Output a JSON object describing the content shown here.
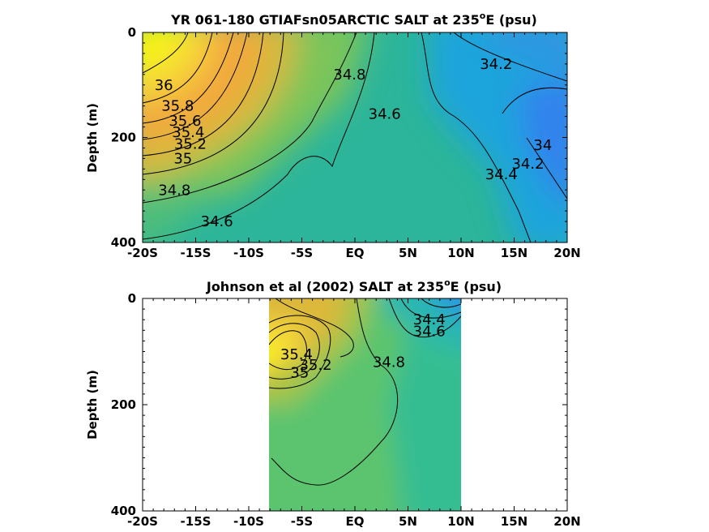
{
  "chart_data": [
    {
      "type": "heatmap",
      "title_main": "YR 061-180 GTIAFsn05ARCTIC SALT at 235",
      "title_sup": "o",
      "title_tail": "E (psu)",
      "xlabel": "",
      "ylabel": "Depth (m)",
      "x_ticks": [
        "-20S",
        "-15S",
        "-10S",
        "-5S",
        "EQ",
        "5N",
        "10N",
        "15N",
        "20N"
      ],
      "x_tick_values": [
        -20,
        -15,
        -10,
        -5,
        0,
        5,
        10,
        15,
        20
      ],
      "y_ticks": [
        "0",
        "200",
        "400"
      ],
      "y_tick_values": [
        0,
        200,
        400
      ],
      "xlim": [
        -20,
        20
      ],
      "ylim": [
        400,
        0
      ],
      "data_xlim": [
        -20,
        20
      ],
      "contour_labels": [
        {
          "text": "36",
          "x": -18,
          "y": 100
        },
        {
          "text": "35.8",
          "x": -16.7,
          "y": 140
        },
        {
          "text": "35.6",
          "x": -16,
          "y": 168
        },
        {
          "text": "35.4",
          "x": -15.7,
          "y": 190
        },
        {
          "text": "35.2",
          "x": -15.5,
          "y": 212
        },
        {
          "text": "35",
          "x": -16.2,
          "y": 240
        },
        {
          "text": "34.8",
          "x": -17,
          "y": 300
        },
        {
          "text": "34.6",
          "x": -13,
          "y": 360
        },
        {
          "text": "34.8",
          "x": -0.5,
          "y": 80
        },
        {
          "text": "34.6",
          "x": 2.8,
          "y": 155
        },
        {
          "text": "34.2",
          "x": 13.3,
          "y": 60
        },
        {
          "text": "34",
          "x": 17.7,
          "y": 215
        },
        {
          "text": "34.2",
          "x": 16.3,
          "y": 250
        },
        {
          "text": "34.4",
          "x": 13.8,
          "y": 270
        }
      ]
    },
    {
      "type": "heatmap",
      "title_main": "Johnson et al (2002) SALT at 235",
      "title_sup": "o",
      "title_tail": "E (psu)",
      "xlabel": "",
      "ylabel": "Depth (m)",
      "x_ticks": [
        "-20S",
        "-15S",
        "-10S",
        "-5S",
        "EQ",
        "5N",
        "10N",
        "15N",
        "20N"
      ],
      "x_tick_values": [
        -20,
        -15,
        -10,
        -5,
        0,
        5,
        10,
        15,
        20
      ],
      "y_ticks": [
        "0",
        "200",
        "400"
      ],
      "y_tick_values": [
        0,
        200,
        400
      ],
      "xlim": [
        -20,
        20
      ],
      "ylim": [
        400,
        0
      ],
      "data_xlim": [
        -8,
        10
      ],
      "contour_labels": [
        {
          "text": "34.4",
          "x": 7,
          "y": 40
        },
        {
          "text": "34.6",
          "x": 7,
          "y": 62
        },
        {
          "text": "35.4",
          "x": -5.5,
          "y": 105
        },
        {
          "text": "35.2",
          "x": -3.7,
          "y": 125
        },
        {
          "text": "35",
          "x": -5.2,
          "y": 140
        },
        {
          "text": "34.8",
          "x": 3.2,
          "y": 120
        }
      ]
    }
  ]
}
